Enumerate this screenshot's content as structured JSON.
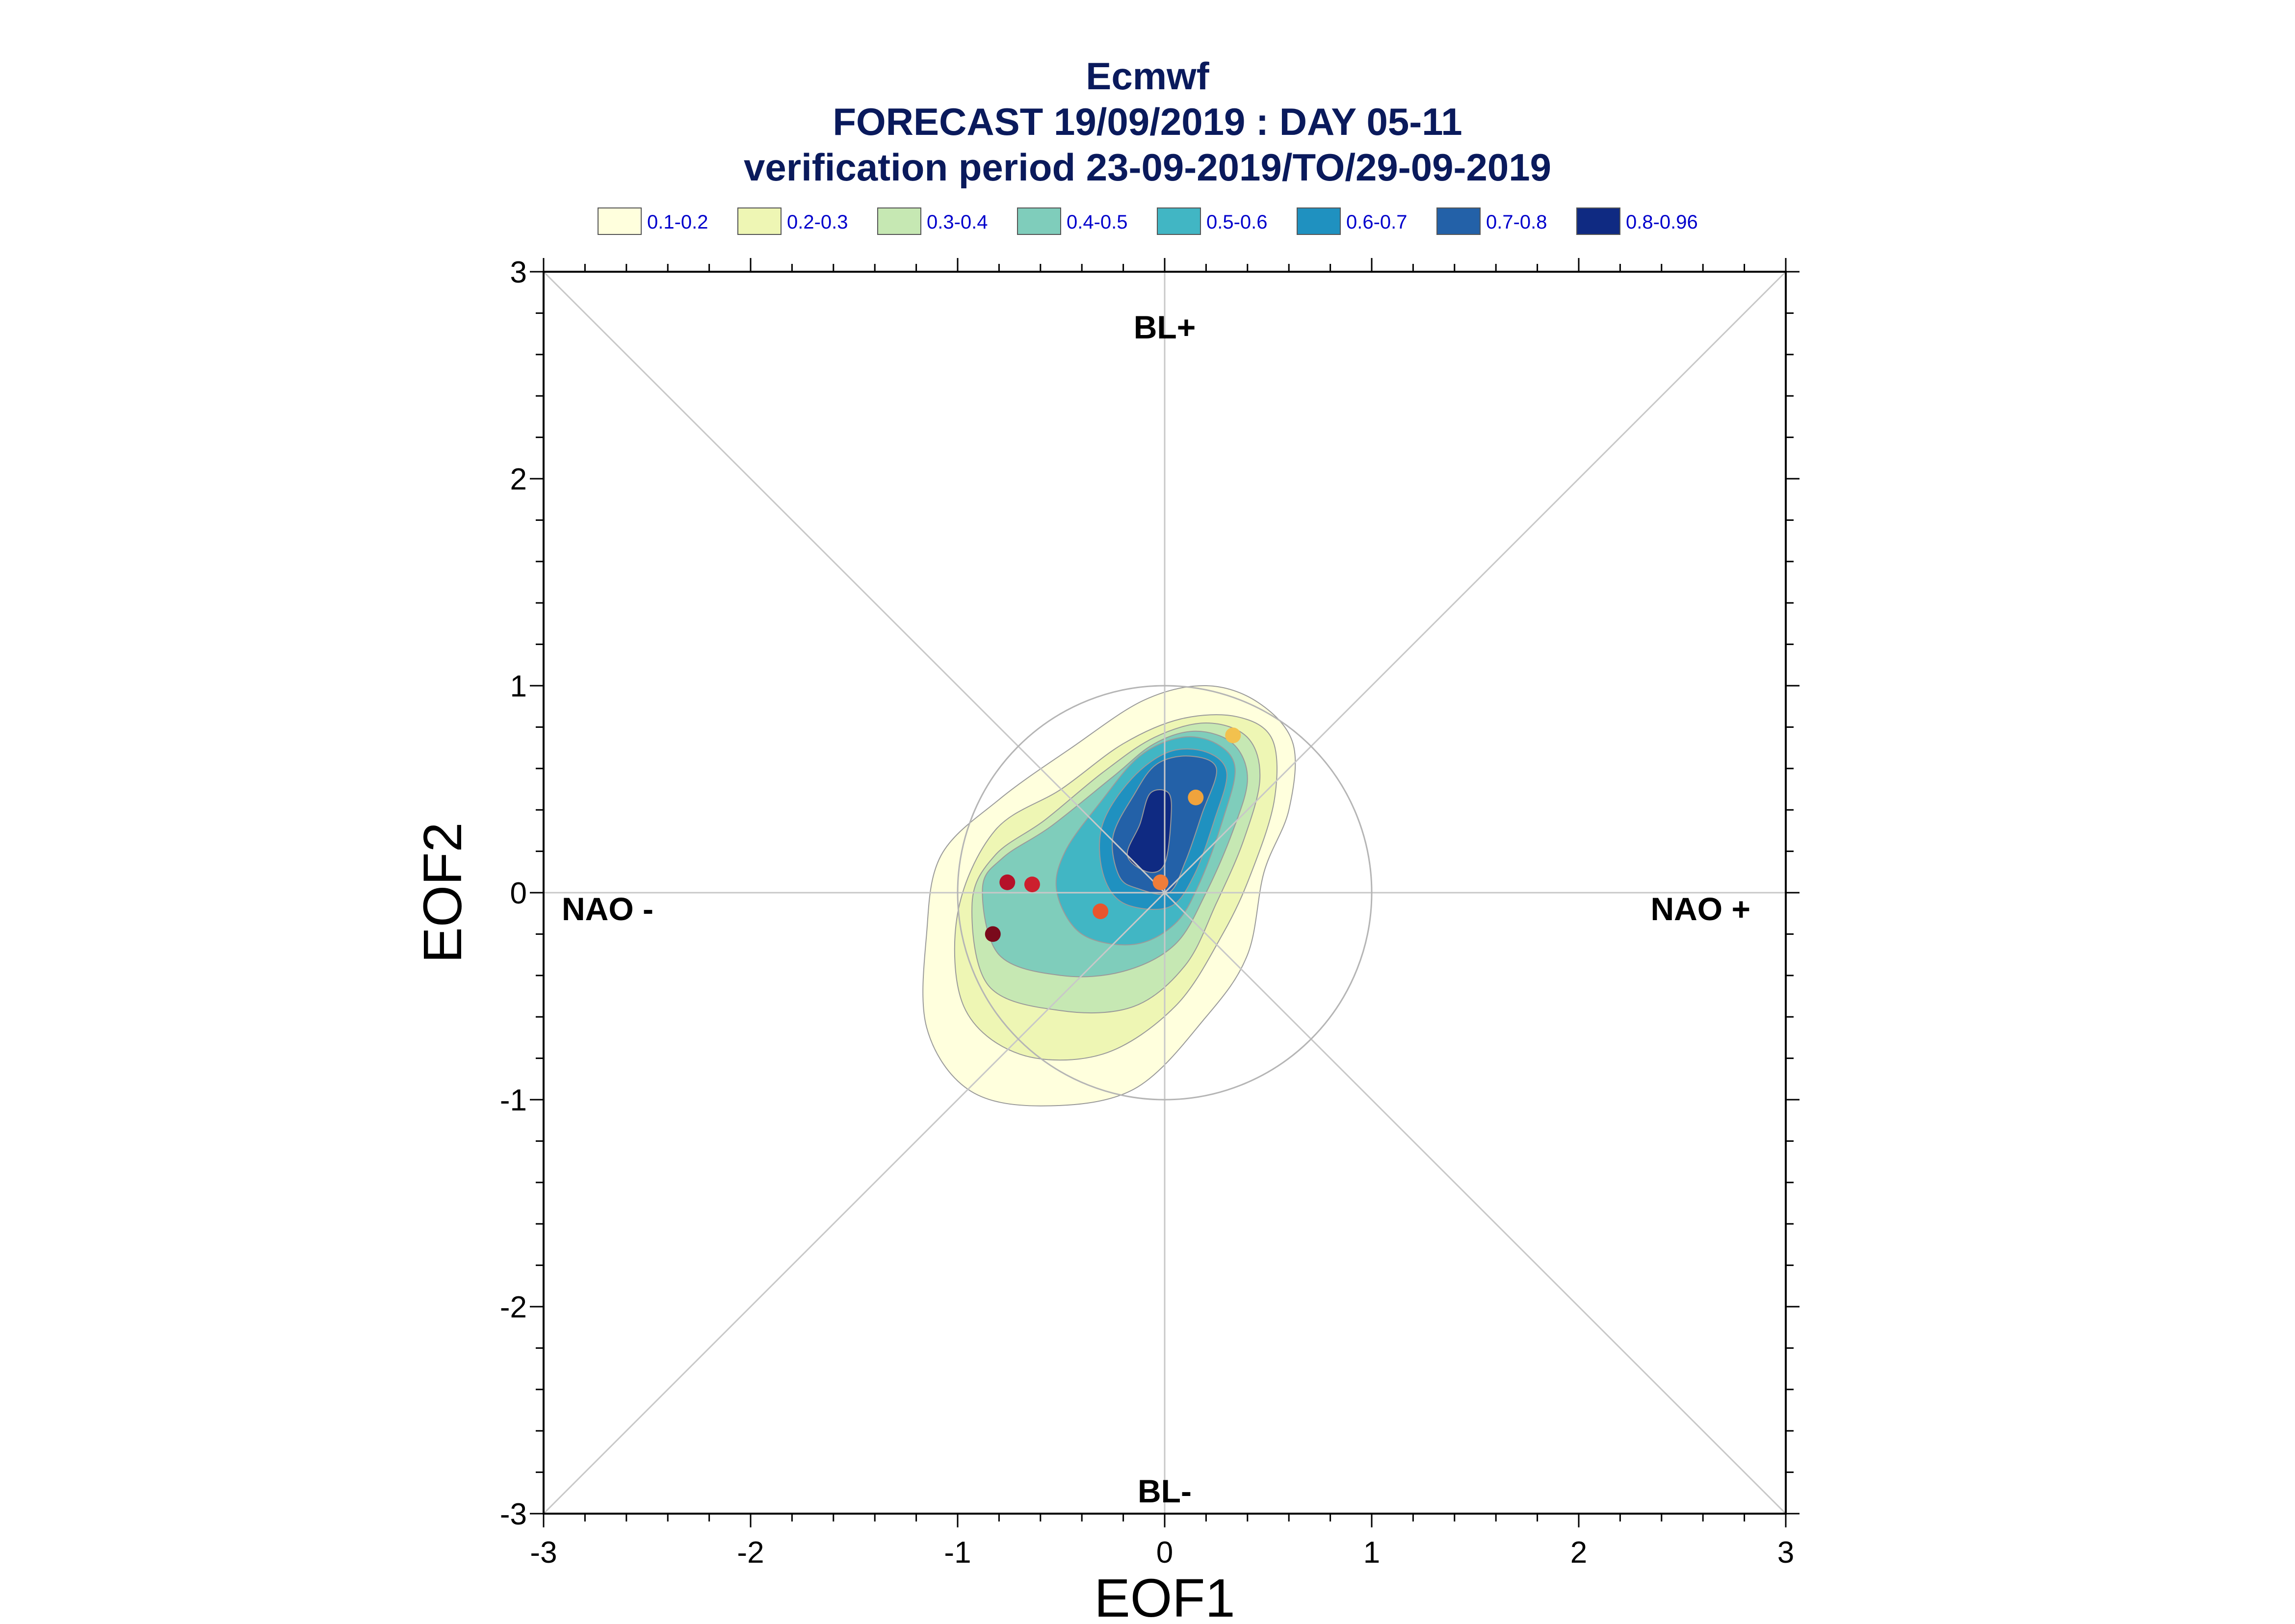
{
  "chart_data": {
    "type": "scatter",
    "title": "Ecmwf",
    "subtitle_lines": [
      "FORECAST 19/09/2019 : DAY 05-11",
      "verification period 23-09-2019/TO/29-09-2019"
    ],
    "xlabel": "EOF1",
    "ylabel": "EOF2",
    "xlim": [
      -3,
      3
    ],
    "ylim": [
      -3,
      3
    ],
    "x_ticks": [
      "-3",
      "-2",
      "-1",
      "0",
      "1",
      "2",
      "3"
    ],
    "y_ticks": [
      "-3",
      "-2",
      "-1",
      "0",
      "1",
      "2",
      "3"
    ],
    "regime_labels": {
      "top": "BL+",
      "bottom": "BL-",
      "left": "NAO -",
      "right": "NAO +"
    },
    "reference_circle_radius": 1,
    "legend": {
      "placement": "top",
      "entries": [
        {
          "label": "0.1-0.2",
          "color": "#ffffdd"
        },
        {
          "label": "0.2-0.3",
          "color": "#eef6b4"
        },
        {
          "label": "0.3-0.4",
          "color": "#c6e8b3"
        },
        {
          "label": "0.4-0.5",
          "color": "#7fcdbb"
        },
        {
          "label": "0.5-0.6",
          "color": "#41b6c4"
        },
        {
          "label": "0.6-0.7",
          "color": "#1f91c0"
        },
        {
          "label": "0.7-0.8",
          "color": "#2361a8"
        },
        {
          "label": "0.8-0.96",
          "color": "#0f2a82"
        }
      ]
    },
    "density_contours": [
      {
        "level": "0.1-0.2",
        "color": "#ffffdd",
        "polygon": [
          [
            -1.15,
            -0.2
          ],
          [
            -1.15,
            -0.65
          ],
          [
            -0.95,
            -0.95
          ],
          [
            -0.6,
            -1.03
          ],
          [
            -0.15,
            -0.95
          ],
          [
            0.2,
            -0.6
          ],
          [
            0.4,
            -0.3
          ],
          [
            0.48,
            0.1
          ],
          [
            0.6,
            0.4
          ],
          [
            0.62,
            0.72
          ],
          [
            0.45,
            0.92
          ],
          [
            0.2,
            1.0
          ],
          [
            -0.1,
            0.93
          ],
          [
            -0.45,
            0.7
          ],
          [
            -0.8,
            0.45
          ],
          [
            -1.08,
            0.18
          ]
        ]
      },
      {
        "level": "0.2-0.3",
        "color": "#eef6b4",
        "polygon": [
          [
            -1.0,
            -0.1
          ],
          [
            -0.97,
            -0.55
          ],
          [
            -0.7,
            -0.78
          ],
          [
            -0.3,
            -0.78
          ],
          [
            0.05,
            -0.55
          ],
          [
            0.28,
            -0.2
          ],
          [
            0.42,
            0.1
          ],
          [
            0.53,
            0.45
          ],
          [
            0.52,
            0.74
          ],
          [
            0.35,
            0.85
          ],
          [
            0.08,
            0.84
          ],
          [
            -0.2,
            0.72
          ],
          [
            -0.5,
            0.5
          ],
          [
            -0.82,
            0.3
          ]
        ]
      },
      {
        "level": "0.3-0.4",
        "color": "#c6e8b3",
        "polygon": [
          [
            -0.93,
            -0.05
          ],
          [
            -0.85,
            -0.45
          ],
          [
            -0.5,
            -0.57
          ],
          [
            -0.15,
            -0.55
          ],
          [
            0.1,
            -0.35
          ],
          [
            0.25,
            -0.05
          ],
          [
            0.38,
            0.25
          ],
          [
            0.46,
            0.55
          ],
          [
            0.4,
            0.75
          ],
          [
            0.2,
            0.82
          ],
          [
            -0.05,
            0.75
          ],
          [
            -0.3,
            0.58
          ],
          [
            -0.58,
            0.35
          ],
          [
            -0.82,
            0.18
          ]
        ]
      },
      {
        "level": "0.4-0.5",
        "color": "#7fcdbb",
        "polygon": [
          [
            -0.88,
            0.02
          ],
          [
            -0.8,
            -0.3
          ],
          [
            -0.5,
            -0.4
          ],
          [
            -0.2,
            -0.38
          ],
          [
            0.05,
            -0.25
          ],
          [
            0.2,
            0.0
          ],
          [
            0.33,
            0.3
          ],
          [
            0.4,
            0.55
          ],
          [
            0.33,
            0.72
          ],
          [
            0.15,
            0.78
          ],
          [
            -0.05,
            0.72
          ],
          [
            -0.25,
            0.56
          ],
          [
            -0.55,
            0.32
          ],
          [
            -0.78,
            0.17
          ]
        ]
      },
      {
        "level": "0.5-0.6",
        "color": "#41b6c4",
        "polygon": [
          [
            -0.4,
            -0.2
          ],
          [
            -0.15,
            -0.25
          ],
          [
            0.05,
            -0.15
          ],
          [
            0.17,
            0.05
          ],
          [
            0.28,
            0.35
          ],
          [
            0.34,
            0.6
          ],
          [
            0.25,
            0.72
          ],
          [
            0.08,
            0.75
          ],
          [
            -0.12,
            0.66
          ],
          [
            -0.3,
            0.45
          ],
          [
            -0.48,
            0.2
          ],
          [
            -0.52,
            0.0
          ]
        ]
      },
      {
        "level": "0.6-0.7",
        "color": "#1f91c0",
        "polygon": [
          [
            -0.2,
            -0.05
          ],
          [
            0.02,
            -0.07
          ],
          [
            0.14,
            0.08
          ],
          [
            0.24,
            0.35
          ],
          [
            0.3,
            0.58
          ],
          [
            0.2,
            0.68
          ],
          [
            0.02,
            0.68
          ],
          [
            -0.16,
            0.55
          ],
          [
            -0.3,
            0.33
          ],
          [
            -0.3,
            0.1
          ]
        ]
      },
      {
        "level": "0.7-0.8",
        "color": "#2361a8",
        "polygon": [
          [
            -0.13,
            0.02
          ],
          [
            0.02,
            0.0
          ],
          [
            0.1,
            0.15
          ],
          [
            0.18,
            0.38
          ],
          [
            0.25,
            0.6
          ],
          [
            0.12,
            0.66
          ],
          [
            -0.04,
            0.62
          ],
          [
            -0.15,
            0.47
          ],
          [
            -0.25,
            0.27
          ],
          [
            -0.22,
            0.08
          ]
        ]
      },
      {
        "level": "0.8-0.96",
        "color": "#0f2a82",
        "polygon": [
          [
            -0.08,
            0.1
          ],
          [
            0.0,
            0.14
          ],
          [
            0.03,
            0.35
          ],
          [
            0.02,
            0.48
          ],
          [
            -0.07,
            0.48
          ],
          [
            -0.12,
            0.33
          ],
          [
            -0.18,
            0.18
          ]
        ]
      }
    ],
    "points": [
      {
        "x": 0.33,
        "y": 0.76,
        "color": "#f2c14e"
      },
      {
        "x": 0.15,
        "y": 0.46,
        "color": "#f0a33c"
      },
      {
        "x": -0.02,
        "y": 0.05,
        "color": "#f07d3a"
      },
      {
        "x": -0.31,
        "y": -0.09,
        "color": "#e8552e"
      },
      {
        "x": -0.64,
        "y": 0.04,
        "color": "#cc1f2e"
      },
      {
        "x": -0.76,
        "y": 0.05,
        "color": "#b51229"
      },
      {
        "x": -0.83,
        "y": -0.2,
        "color": "#7a0a1c"
      }
    ]
  }
}
